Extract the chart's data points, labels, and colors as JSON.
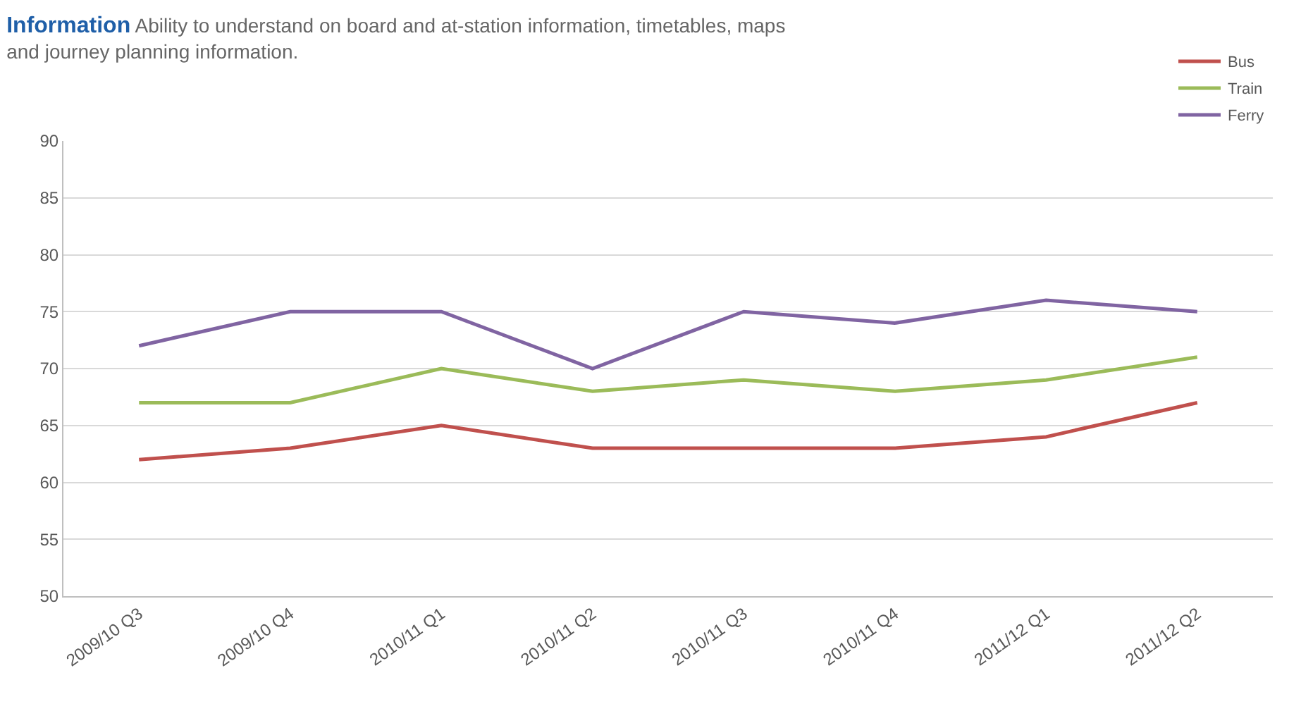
{
  "chart_data": {
    "type": "line",
    "title": "Information",
    "subtitle": "Ability to understand on board and at-station information, timetables, maps and journey planning information.",
    "categories": [
      "2009/10 Q3",
      "2009/10 Q4",
      "2010/11 Q1",
      "2010/11 Q2",
      "2010/11 Q3",
      "2010/11 Q4",
      "2011/12 Q1",
      "2011/12 Q2"
    ],
    "series": [
      {
        "name": "Bus",
        "color": "#c0504d",
        "values": [
          62,
          63,
          65,
          63,
          63,
          63,
          64,
          67
        ]
      },
      {
        "name": "Train",
        "color": "#9bbb59",
        "values": [
          67,
          67,
          70,
          68,
          69,
          68,
          69,
          71
        ]
      },
      {
        "name": "Ferry",
        "color": "#8064a2",
        "values": [
          72,
          75,
          75,
          70,
          75,
          74,
          76,
          75
        ]
      }
    ],
    "ylim": [
      50,
      90
    ],
    "yticks": [
      50,
      55,
      60,
      65,
      70,
      75,
      80,
      85,
      90
    ],
    "grid": "y",
    "legend": "top right",
    "marker": "none",
    "line_style": "solid"
  }
}
